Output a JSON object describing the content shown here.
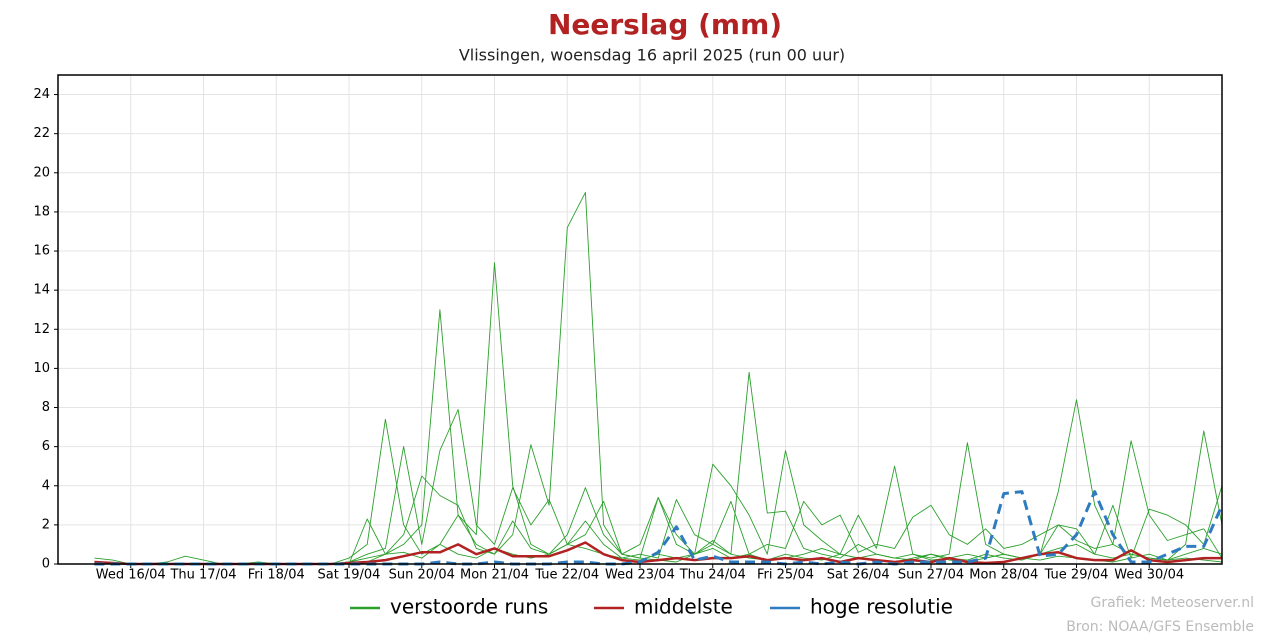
{
  "chart_data": {
    "type": "line",
    "title": "Neerslag (mm)",
    "subtitle": "Vlissingen, woensdag 16 april 2025 (run 00 uur)",
    "credits": [
      "Grafiek: Meteoserver.nl",
      "Bron: NOAA/GFS Ensemble"
    ],
    "x": [
      12,
      18,
      24,
      30,
      36,
      42,
      48,
      54,
      60,
      66,
      72,
      78,
      84,
      90,
      96,
      102,
      108,
      114,
      120,
      126,
      132,
      138,
      144,
      150,
      156,
      162,
      168,
      174,
      180,
      186,
      192,
      198,
      204,
      210,
      216,
      222,
      228,
      234,
      240,
      246,
      252,
      258,
      264,
      270,
      276,
      282,
      288,
      294,
      300,
      306,
      312,
      318,
      324,
      330,
      336,
      342,
      348,
      354,
      360,
      366,
      372,
      378,
      384
    ],
    "xlim": [
      0,
      384
    ],
    "xticks": [
      {
        "value": 24,
        "label": "Wed 16/04"
      },
      {
        "value": 48,
        "label": "Thu 17/04"
      },
      {
        "value": 72,
        "label": "Fri 18/04"
      },
      {
        "value": 96,
        "label": "Sat 19/04"
      },
      {
        "value": 120,
        "label": "Sun 20/04"
      },
      {
        "value": 144,
        "label": "Mon 21/04"
      },
      {
        "value": 168,
        "label": "Tue 22/04"
      },
      {
        "value": 192,
        "label": "Wed 23/04"
      },
      {
        "value": 216,
        "label": "Thu 24/04"
      },
      {
        "value": 240,
        "label": "Fri 25/04"
      },
      {
        "value": 264,
        "label": "Sat 26/04"
      },
      {
        "value": 288,
        "label": "Sun 27/04"
      },
      {
        "value": 312,
        "label": "Mon 28/04"
      },
      {
        "value": 336,
        "label": "Tue 29/04"
      },
      {
        "value": 360,
        "label": "Wed 30/04"
      }
    ],
    "ylim": [
      0,
      25
    ],
    "yticks": [
      0,
      2,
      4,
      6,
      8,
      10,
      12,
      14,
      16,
      18,
      20,
      22,
      24
    ],
    "grid": true,
    "series": [
      {
        "name": "verstoorde runs",
        "color": "#2ca02c",
        "members": [
          [
            0.3,
            0.2,
            0,
            0,
            0,
            0,
            0,
            0,
            0,
            0,
            0,
            0,
            0,
            0,
            0,
            0.1,
            0.5,
            1.0,
            2.0,
            13.0,
            2.5,
            1.0,
            0.5,
            1.5,
            6.1,
            3.0,
            17.2,
            19.0,
            2.0,
            0.5,
            0.3,
            0.2,
            0.1,
            0.5,
            1.0,
            0.5,
            0.3,
            0.2,
            0.5,
            0.3,
            0.2,
            0.5,
            0.3,
            0.2,
            0.1,
            0.3,
            0.5,
            0.2,
            0.1,
            0.3,
            0.5,
            0.3,
            0.2,
            0.4,
            0.3,
            0.2,
            0.1,
            0.3,
            0.5,
            0.2,
            0.3,
            0.2,
            0.1
          ],
          [
            0,
            0,
            0,
            0,
            0.1,
            0.4,
            0.2,
            0,
            0,
            0,
            0,
            0,
            0,
            0,
            0.3,
            1.0,
            7.4,
            2.0,
            0.5,
            1.0,
            2.5,
            1.5,
            15.4,
            4.0,
            1.0,
            0.5,
            1.5,
            3.9,
            1.5,
            0.5,
            1.0,
            3.4,
            1.5,
            0.5,
            1.2,
            0.5,
            9.8,
            2.6,
            2.7,
            0.8,
            0.5,
            0.3,
            1.0,
            0.5,
            0.3,
            0.2,
            0.5,
            0.3,
            0.2,
            0.5,
            0.3,
            0.2,
            0.5,
            3.7,
            8.4,
            3.0,
            1.0,
            0.5,
            0.3,
            0.2,
            1.0,
            6.8,
            2.0
          ],
          [
            0,
            0,
            0,
            0,
            0,
            0,
            0,
            0,
            0,
            0,
            0,
            0,
            0,
            0,
            0.1,
            0.5,
            0.8,
            6.0,
            1.0,
            5.8,
            7.9,
            2.0,
            1.0,
            3.9,
            2.0,
            3.3,
            1.0,
            1.5,
            3.2,
            0.5,
            0.3,
            3.4,
            1.0,
            0.5,
            5.1,
            4.0,
            2.5,
            0.5,
            5.8,
            2.0,
            1.2,
            0.5,
            2.5,
            0.8,
            5.0,
            0.5,
            0.3,
            0.5,
            6.2,
            1.0,
            0.5,
            0.3,
            0.5,
            2.0,
            1.8,
            0.5,
            3.0,
            0.3,
            2.8,
            2.5,
            2.0,
            1.0,
            4.0
          ],
          [
            0,
            0,
            0,
            0,
            0,
            0,
            0,
            0,
            0,
            0,
            0,
            0,
            0,
            0,
            0,
            2.3,
            0.5,
            1.5,
            4.5,
            3.5,
            3.0,
            0.8,
            0.5,
            2.2,
            0.8,
            0.5,
            1.0,
            2.2,
            1.0,
            0.3,
            0.5,
            0.3,
            3.3,
            1.5,
            1.0,
            3.2,
            0.5,
            1.0,
            0.8,
            3.2,
            2.0,
            2.5,
            0.6,
            1.0,
            0.8,
            2.4,
            3.0,
            1.5,
            1.0,
            1.8,
            0.8,
            1.0,
            1.5,
            2.0,
            1.2,
            0.8,
            1.0,
            6.3,
            2.5,
            1.2,
            1.5,
            1.8,
            0.3
          ],
          [
            0,
            0,
            0,
            0,
            0,
            0,
            0,
            0,
            0,
            0.1,
            0,
            0,
            0,
            0,
            0.1,
            0.3,
            0.5,
            0.6,
            0.3,
            1.0,
            0.5,
            0.3,
            0.8,
            0.5,
            0.3,
            0.5,
            1.0,
            0.8,
            0.5,
            0.3,
            0.2,
            0.5,
            0.3,
            0.5,
            0.8,
            0.3,
            0.5,
            0.2,
            0.3,
            0.5,
            0.8,
            0.5,
            0.3,
            0.5,
            0.3,
            0.5,
            0.2,
            0.3,
            0.5,
            0.3,
            0.5,
            0.3,
            0.5,
            0.8,
            1.0,
            0.5,
            0.3,
            0.5,
            0.3,
            0.2,
            0.5,
            0.8,
            0.5
          ]
        ]
      },
      {
        "name": "middelste",
        "color": "#b22222",
        "values": [
          0.1,
          0.05,
          0,
          0,
          0,
          0,
          0,
          0,
          0,
          0,
          0,
          0,
          0,
          0,
          0.05,
          0.1,
          0.2,
          0.4,
          0.6,
          0.6,
          1.0,
          0.5,
          0.8,
          0.4,
          0.4,
          0.4,
          0.7,
          1.1,
          0.5,
          0.2,
          0.1,
          0.2,
          0.3,
          0.2,
          0.3,
          0.3,
          0.4,
          0.2,
          0.3,
          0.2,
          0.3,
          0.1,
          0.3,
          0.2,
          0.1,
          0.2,
          0.1,
          0.3,
          0.1,
          0.05,
          0.1,
          0.3,
          0.5,
          0.6,
          0.3,
          0.2,
          0.2,
          0.7,
          0.2,
          0.1,
          0.2,
          0.3,
          0.3
        ]
      },
      {
        "name": "hoge resolutie",
        "color": "#2f7bbf",
        "dashed": true,
        "values": [
          0,
          0,
          0,
          0,
          0,
          0,
          0,
          0,
          0,
          0,
          0,
          0,
          0,
          0,
          0,
          0,
          0,
          0,
          0,
          0.1,
          0,
          0,
          0.1,
          0,
          0,
          0,
          0.1,
          0.1,
          0,
          0,
          0.1,
          0.6,
          1.9,
          0.2,
          0.4,
          0.1,
          0.1,
          0.1,
          0,
          0.1,
          0,
          0.1,
          0,
          0.1,
          0,
          0.1,
          0.1,
          0.1,
          0.1,
          0.3,
          3.6,
          3.7,
          0.4,
          0.5,
          1.5,
          3.7,
          1.5,
          0.1,
          0.1,
          0.5,
          0.9,
          0.9,
          3.0
        ]
      }
    ]
  }
}
